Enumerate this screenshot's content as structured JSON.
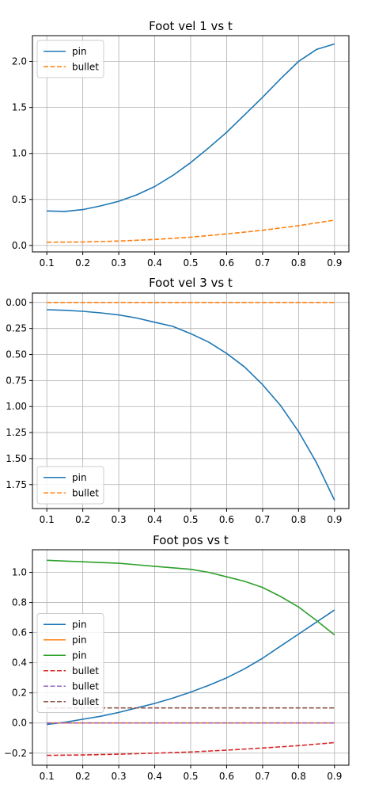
{
  "chart_data": [
    {
      "type": "line",
      "title": "Foot vel 1 vs t",
      "xlabel": "",
      "ylabel": "",
      "xlim": [
        0.06,
        0.94
      ],
      "ylim": [
        -0.07,
        2.28
      ],
      "y_inverted": false,
      "xticks": [
        0.1,
        0.2,
        0.3,
        0.4,
        0.5,
        0.6,
        0.7,
        0.8,
        0.9
      ],
      "xtick_labels": [
        "0.1",
        "0.2",
        "0.3",
        "0.4",
        "0.5",
        "0.6",
        "0.7",
        "0.8",
        "0.9"
      ],
      "yticks": [
        0.0,
        0.5,
        1.0,
        1.5,
        2.0
      ],
      "ytick_labels": [
        "0.0",
        "0.5",
        "1.0",
        "1.5",
        "2.0"
      ],
      "grid": true,
      "legend": "top-left",
      "series": [
        {
          "name": "pin",
          "color": "#1f77b4",
          "dash": "solid",
          "x": [
            0.1,
            0.15,
            0.2,
            0.25,
            0.3,
            0.35,
            0.4,
            0.45,
            0.5,
            0.55,
            0.6,
            0.65,
            0.7,
            0.75,
            0.8,
            0.85,
            0.9
          ],
          "y": [
            0.375,
            0.37,
            0.39,
            0.43,
            0.48,
            0.55,
            0.64,
            0.76,
            0.9,
            1.06,
            1.23,
            1.42,
            1.61,
            1.81,
            2.0,
            2.13,
            2.19
          ]
        },
        {
          "name": "bullet",
          "color": "#ff7f0e",
          "dash": "dashed",
          "x": [
            0.1,
            0.2,
            0.3,
            0.4,
            0.5,
            0.6,
            0.7,
            0.8,
            0.9
          ],
          "y": [
            0.035,
            0.038,
            0.048,
            0.065,
            0.09,
            0.125,
            0.165,
            0.215,
            0.275
          ]
        }
      ]
    },
    {
      "type": "line",
      "title": "Foot vel 3 vs t",
      "xlabel": "",
      "ylabel": "",
      "xlim": [
        0.06,
        0.94
      ],
      "ylim": [
        -0.09,
        1.98
      ],
      "y_inverted": true,
      "xticks": [
        0.1,
        0.2,
        0.3,
        0.4,
        0.5,
        0.6,
        0.7,
        0.8,
        0.9
      ],
      "xtick_labels": [
        "0.1",
        "0.2",
        "0.3",
        "0.4",
        "0.5",
        "0.6",
        "0.7",
        "0.8",
        "0.9"
      ],
      "yticks": [
        0.0,
        0.25,
        0.5,
        0.75,
        1.0,
        1.25,
        1.5,
        1.75
      ],
      "ytick_labels": [
        "0.00",
        "0.25",
        "0.50",
        "0.75",
        "1.00",
        "1.25",
        "1.50",
        "1.75"
      ],
      "grid": true,
      "legend": "bottom-left",
      "series": [
        {
          "name": "pin",
          "color": "#1f77b4",
          "dash": "solid",
          "x": [
            0.1,
            0.15,
            0.2,
            0.25,
            0.3,
            0.35,
            0.4,
            0.45,
            0.5,
            0.55,
            0.6,
            0.65,
            0.7,
            0.75,
            0.8,
            0.85,
            0.9
          ],
          "y": [
            0.07,
            0.075,
            0.085,
            0.1,
            0.12,
            0.15,
            0.19,
            0.23,
            0.3,
            0.38,
            0.49,
            0.62,
            0.79,
            0.99,
            1.24,
            1.54,
            1.9
          ]
        },
        {
          "name": "bullet",
          "color": "#ff7f0e",
          "dash": "dashed",
          "x": [
            0.1,
            0.5,
            0.9
          ],
          "y": [
            0.0,
            0.0,
            0.0
          ]
        }
      ]
    },
    {
      "type": "line",
      "title": "Foot pos vs t",
      "xlabel": "",
      "ylabel": "",
      "xlim": [
        0.06,
        0.94
      ],
      "ylim": [
        -0.28,
        1.15
      ],
      "y_inverted": false,
      "xticks": [
        0.1,
        0.2,
        0.3,
        0.4,
        0.5,
        0.6,
        0.7,
        0.8,
        0.9
      ],
      "xtick_labels": [
        "0.1",
        "0.2",
        "0.3",
        "0.4",
        "0.5",
        "0.6",
        "0.7",
        "0.8",
        "0.9"
      ],
      "yticks": [
        -0.2,
        0.0,
        0.2,
        0.4,
        0.6,
        0.8,
        1.0
      ],
      "ytick_labels": [
        "−0.2",
        "0.0",
        "0.2",
        "0.4",
        "0.6",
        "0.8",
        "1.0"
      ],
      "grid": true,
      "legend": "center-left",
      "series": [
        {
          "name": "pin",
          "color": "#1f77b4",
          "dash": "solid",
          "x": [
            0.1,
            0.15,
            0.2,
            0.25,
            0.3,
            0.35,
            0.4,
            0.45,
            0.5,
            0.55,
            0.6,
            0.65,
            0.7,
            0.75,
            0.8,
            0.85,
            0.9
          ],
          "y": [
            -0.01,
            0.005,
            0.025,
            0.045,
            0.07,
            0.1,
            0.13,
            0.165,
            0.205,
            0.25,
            0.3,
            0.36,
            0.43,
            0.51,
            0.59,
            0.67,
            0.75
          ]
        },
        {
          "name": "pin",
          "color": "#ff7f0e",
          "dash": "solid",
          "x": [
            0.1,
            0.5,
            0.9
          ],
          "y": [
            0.0,
            0.0,
            0.0
          ]
        },
        {
          "name": "pin",
          "color": "#2ca02c",
          "dash": "solid",
          "x": [
            0.1,
            0.15,
            0.2,
            0.25,
            0.3,
            0.35,
            0.4,
            0.45,
            0.5,
            0.55,
            0.6,
            0.65,
            0.7,
            0.75,
            0.8,
            0.85,
            0.9
          ],
          "y": [
            1.08,
            1.075,
            1.07,
            1.065,
            1.06,
            1.05,
            1.04,
            1.03,
            1.02,
            1.0,
            0.97,
            0.94,
            0.9,
            0.84,
            0.77,
            0.68,
            0.585
          ]
        },
        {
          "name": "bullet",
          "color": "#d62728",
          "dash": "dashed",
          "x": [
            0.1,
            0.2,
            0.3,
            0.4,
            0.5,
            0.6,
            0.7,
            0.8,
            0.9
          ],
          "y": [
            -0.215,
            -0.212,
            -0.207,
            -0.2,
            -0.192,
            -0.18,
            -0.166,
            -0.15,
            -0.13
          ]
        },
        {
          "name": "bullet",
          "color": "#9467bd",
          "dash": "dashed",
          "x": [
            0.1,
            0.5,
            0.9
          ],
          "y": [
            0.0,
            0.0,
            0.0
          ]
        },
        {
          "name": "bullet",
          "color": "#8c564b",
          "dash": "dashed",
          "x": [
            0.1,
            0.5,
            0.9
          ],
          "y": [
            0.1,
            0.1,
            0.1
          ]
        }
      ]
    }
  ]
}
